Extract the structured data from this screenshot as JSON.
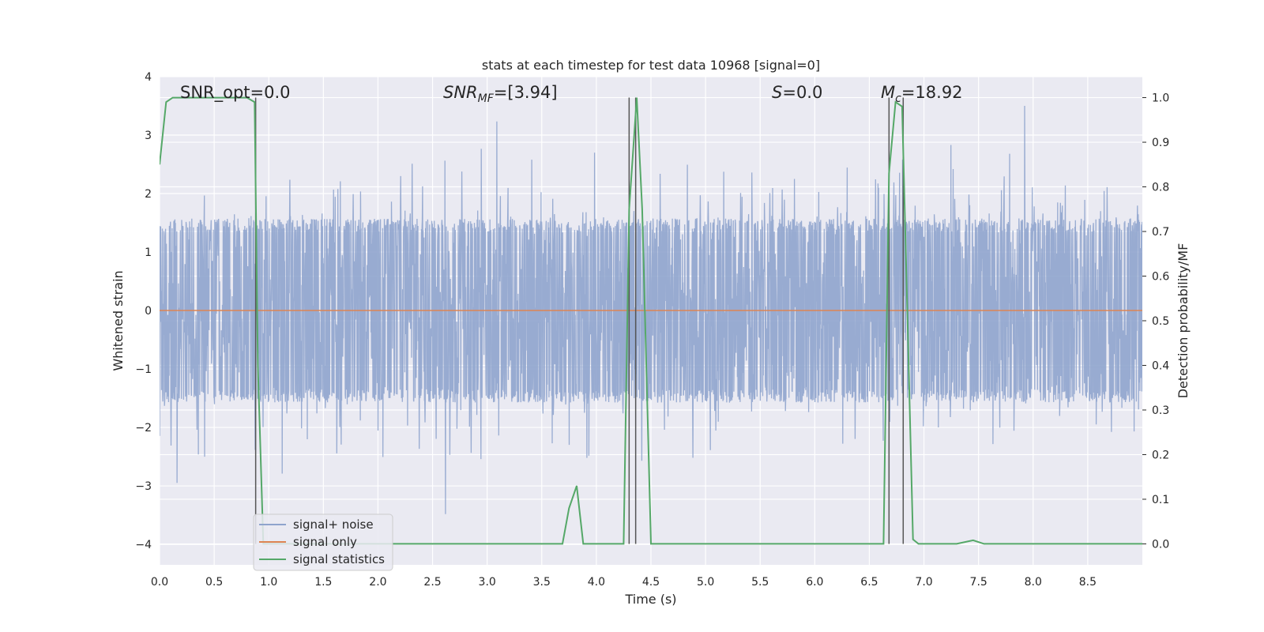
{
  "chart_data": {
    "type": "line",
    "title": "stats at each timestep for test data 10968 [signal=0]",
    "xlabel": "Time (s)",
    "ylabel": "Whitened strain",
    "y2label": "Detection probability/MF",
    "xlim": [
      0.0,
      9.0
    ],
    "ylim": [
      -4.35,
      4.0
    ],
    "y2lim": [
      -0.047,
      1.047
    ],
    "xticks": [
      "0.0",
      "0.5",
      "1.0",
      "1.5",
      "2.0",
      "2.5",
      "3.0",
      "3.5",
      "4.0",
      "4.5",
      "5.0",
      "5.5",
      "6.0",
      "6.5",
      "7.0",
      "7.5",
      "8.0",
      "8.5"
    ],
    "yticks": [
      "4",
      "3",
      "2",
      "1",
      "0",
      "−1",
      "−2",
      "−3",
      "−4"
    ],
    "y2ticks": [
      "1.0",
      "0.9",
      "0.8",
      "0.7",
      "0.6",
      "0.5",
      "0.4",
      "0.3",
      "0.2",
      "0.1",
      "0.0"
    ],
    "grid": true,
    "legend_position": "lower-left",
    "annotations": {
      "snr_opt": "SNR_opt=0.0",
      "snr_mf_var": "SNR",
      "snr_mf_sub": "MF",
      "snr_mf_val": "=[3.94]",
      "s_var": "S",
      "s_val": "=0.0",
      "mc_var": "M",
      "mc_sub": "c",
      "mc_val": "=18.92"
    },
    "series": [
      {
        "name": "signal+ noise",
        "color": "#8fa4cd",
        "axis": "left",
        "description": "whitened noisy strain, roughly within ±2 with spikes to ±3.5",
        "amplitude_core": 1.5,
        "amplitude_peak": 3.5
      },
      {
        "name": "signal only",
        "color": "#dd8452",
        "axis": "left",
        "x": [
          0.0,
          9.0
        ],
        "y": [
          0.0,
          0.0
        ]
      },
      {
        "name": "signal statistics",
        "color": "#55a868",
        "axis": "right",
        "x": [
          0.0,
          0.06,
          0.12,
          0.2,
          0.8,
          0.87,
          0.9,
          0.95,
          1.0,
          3.69,
          3.75,
          3.82,
          3.88,
          4.25,
          4.3,
          4.37,
          4.42,
          4.5,
          6.63,
          6.68,
          6.74,
          6.8,
          6.85,
          6.9,
          6.95,
          7.3,
          7.45,
          7.55,
          9.0
        ],
        "y": [
          0.85,
          0.99,
          1.0,
          1.0,
          1.0,
          0.99,
          0.4,
          0.0,
          0.0,
          0.0,
          0.08,
          0.13,
          0.0,
          0.0,
          0.75,
          1.0,
          0.75,
          0.0,
          0.0,
          0.83,
          0.99,
          0.98,
          0.5,
          0.01,
          0.0,
          0.0,
          0.008,
          0.0,
          0.0
        ]
      }
    ],
    "vlines": {
      "color": "#555555",
      "x": [
        0.88,
        4.3,
        4.36,
        6.68,
        6.81
      ],
      "y2_top": 1.0,
      "y2_bottom": 0.0
    }
  }
}
